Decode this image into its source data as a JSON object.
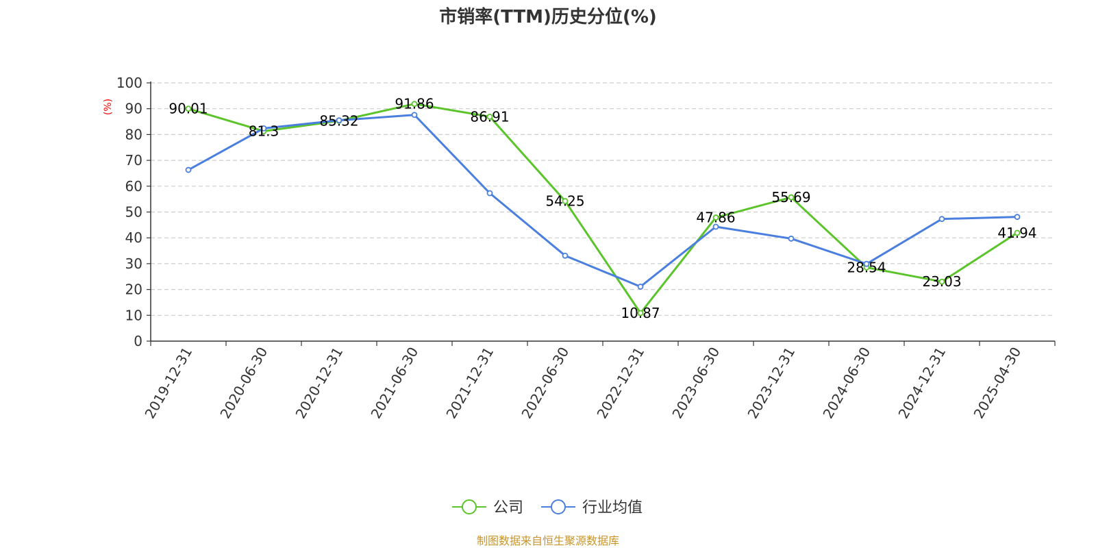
{
  "chart_data": {
    "type": "line",
    "title": "市销率(TTM)历史分位(%)",
    "ylabel": "(%)",
    "ylim": [
      0,
      100
    ],
    "yticks": [
      0,
      10,
      20,
      30,
      40,
      50,
      60,
      70,
      80,
      90,
      100
    ],
    "grid": true,
    "legend_position": "bottom",
    "categories": [
      "2019-12-31",
      "2020-06-30",
      "2020-12-31",
      "2021-06-30",
      "2021-12-31",
      "2022-06-30",
      "2022-12-31",
      "2023-06-30",
      "2023-12-31",
      "2024-06-30",
      "2024-12-31",
      "2025-04-30"
    ],
    "series": [
      {
        "name": "公司",
        "color": "#5bc42a",
        "values": [
          90.01,
          81.3,
          85.32,
          91.86,
          86.91,
          54.25,
          10.87,
          47.86,
          55.69,
          28.54,
          23.03,
          41.94
        ],
        "labels": [
          "90.01",
          "81.3",
          "85.32",
          "91.86",
          "86.91",
          "54.25",
          "10.87",
          "47.86",
          "55.69",
          "28.54",
          "23.03",
          "41.94"
        ]
      },
      {
        "name": "行业均值",
        "color": "#4a7fdf",
        "values": [
          66.3,
          82.4,
          85.5,
          87.6,
          57.3,
          33.1,
          21.1,
          44.3,
          39.7,
          29.9,
          47.3,
          48.1
        ]
      }
    ],
    "source": "制图数据来自恒生聚源数据库"
  }
}
